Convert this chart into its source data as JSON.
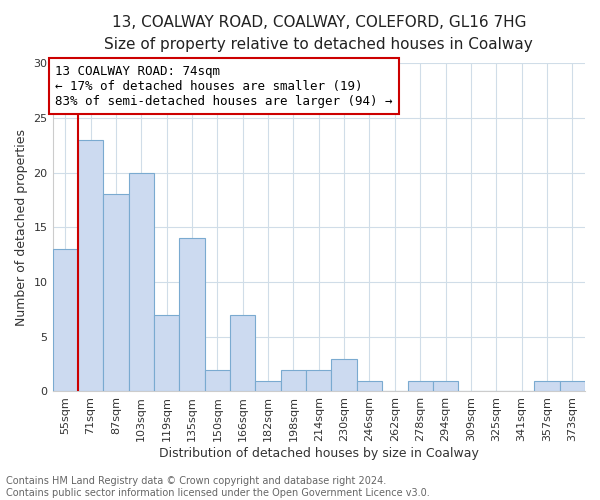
{
  "title_line1": "13, COALWAY ROAD, COALWAY, COLEFORD, GL16 7HG",
  "title_line2": "Size of property relative to detached houses in Coalway",
  "xlabel": "Distribution of detached houses by size in Coalway",
  "ylabel": "Number of detached properties",
  "categories": [
    "55sqm",
    "71sqm",
    "87sqm",
    "103sqm",
    "119sqm",
    "135sqm",
    "150sqm",
    "166sqm",
    "182sqm",
    "198sqm",
    "214sqm",
    "230sqm",
    "246sqm",
    "262sqm",
    "278sqm",
    "294sqm",
    "309sqm",
    "325sqm",
    "341sqm",
    "357sqm",
    "373sqm"
  ],
  "values": [
    13,
    23,
    18,
    20,
    7,
    14,
    2,
    7,
    1,
    2,
    2,
    3,
    1,
    0,
    1,
    1,
    0,
    0,
    0,
    1,
    1
  ],
  "bar_color": "#ccdaf0",
  "bar_edge_color": "#7aaad0",
  "vline_color": "#cc0000",
  "annotation_text": "13 COALWAY ROAD: 74sqm\n← 17% of detached houses are smaller (19)\n83% of semi-detached houses are larger (94) →",
  "annotation_box_color": "#ffffff",
  "annotation_box_edge": "#cc0000",
  "ylim": [
    0,
    30
  ],
  "yticks": [
    0,
    5,
    10,
    15,
    20,
    25,
    30
  ],
  "footer": "Contains HM Land Registry data © Crown copyright and database right 2024.\nContains public sector information licensed under the Open Government Licence v3.0.",
  "bg_color": "#ffffff",
  "plot_bg_color": "#ffffff",
  "grid_color": "#d0dde8",
  "title1_fontsize": 11,
  "title2_fontsize": 10,
  "tick_fontsize": 8,
  "ylabel_fontsize": 9,
  "xlabel_fontsize": 9,
  "footer_fontsize": 7,
  "annotation_fontsize": 9
}
